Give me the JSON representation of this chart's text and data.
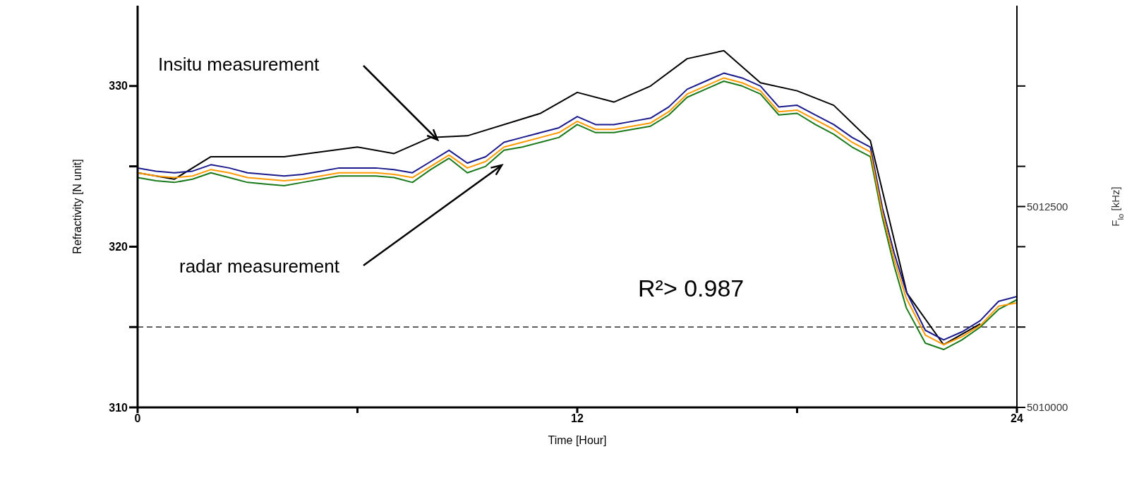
{
  "chart_data": {
    "type": "line",
    "xlabel": "Time [Hour]",
    "ylabel": "Refractivity [N unit]",
    "y2label": "F$_{lo}$ [kHz]",
    "marker": "none",
    "xlim": [
      0,
      24
    ],
    "xticks": [
      0,
      {
        "value": 6,
        "label": null
      },
      12,
      {
        "value": 18,
        "label": null
      },
      24
    ],
    "ylim": [
      310,
      335
    ],
    "yticks": [
      310,
      {
        "value": 315,
        "label": null
      },
      320,
      {
        "value": 325,
        "label": null
      },
      330
    ],
    "y2lim": [
      5010000,
      5015000
    ],
    "y2ticks": [
      5010000,
      {
        "value": 5011000,
        "label": null
      },
      {
        "value": 5012000,
        "label": null
      },
      5012500,
      {
        "value": 5013000,
        "label": null
      },
      {
        "value": 5014000,
        "label": null
      }
    ],
    "x": [
      0,
      0.5,
      1,
      1.5,
      2,
      2.5,
      3,
      3.5,
      4,
      4.5,
      5,
      5.5,
      6,
      6.5,
      7,
      7.5,
      8,
      8.5,
      9,
      9.5,
      10,
      10.5,
      11,
      11.5,
      12,
      12.5,
      13,
      13.5,
      14,
      14.5,
      15,
      15.5,
      16,
      16.5,
      17,
      17.5,
      18,
      18.5,
      19,
      19.5,
      20,
      20.33,
      20.65,
      20.98,
      21.5,
      22,
      22.5,
      23,
      23.5,
      24
    ],
    "series": [
      {
        "color": "#000000",
        "x": [
          0,
          1,
          2,
          4,
          6,
          7,
          8,
          9,
          11,
          12,
          13,
          14,
          15,
          16,
          17,
          18,
          19,
          20,
          21,
          22,
          23
        ],
        "values": [
          324.6,
          324.2,
          325.6,
          325.6,
          326.2,
          325.8,
          326.8,
          326.9,
          328.3,
          329.6,
          329.0,
          330.0,
          331.7,
          332.2,
          330.2,
          329.7,
          328.8,
          326.6,
          317.1,
          313.9,
          315.2
        ]
      },
      {
        "color": "#1a7a1a",
        "values": [
          324.3,
          324.1,
          324.0,
          324.2,
          324.6,
          324.3,
          324.0,
          323.9,
          323.8,
          324.0,
          324.2,
          324.4,
          324.4,
          324.4,
          324.3,
          324.0,
          324.8,
          325.5,
          324.6,
          325.0,
          326.0,
          326.2,
          326.5,
          326.8,
          327.6,
          327.1,
          327.1,
          327.3,
          327.5,
          328.2,
          329.3,
          329.8,
          330.3,
          330.0,
          329.5,
          328.2,
          328.3,
          327.6,
          327.0,
          326.2,
          325.6,
          321.8,
          318.8,
          316.2,
          314.0,
          313.6,
          314.2,
          315.0,
          316.1,
          316.7
        ]
      },
      {
        "color": "#1a1a8c",
        "values": [
          324.9,
          324.7,
          324.6,
          324.7,
          325.1,
          324.9,
          324.6,
          324.5,
          324.4,
          324.5,
          324.7,
          324.9,
          324.9,
          324.9,
          324.8,
          324.6,
          325.3,
          326.0,
          325.2,
          325.6,
          326.5,
          326.8,
          327.1,
          327.4,
          328.1,
          327.6,
          327.6,
          327.8,
          328.0,
          328.7,
          329.8,
          330.3,
          330.8,
          330.5,
          330.0,
          328.7,
          328.8,
          328.2,
          327.6,
          326.8,
          326.2,
          322.4,
          319.6,
          317.2,
          314.8,
          314.2,
          314.7,
          315.4,
          316.6,
          316.9
        ]
      },
      {
        "color": "#ff9900",
        "values": [
          324.6,
          324.4,
          324.3,
          324.4,
          324.8,
          324.6,
          324.3,
          324.2,
          324.1,
          324.2,
          324.4,
          324.6,
          324.6,
          324.6,
          324.5,
          324.3,
          325.0,
          325.7,
          324.9,
          325.3,
          326.2,
          326.5,
          326.8,
          327.1,
          327.8,
          327.3,
          327.3,
          327.5,
          327.7,
          328.4,
          329.5,
          330.0,
          330.5,
          330.2,
          329.7,
          328.4,
          328.5,
          327.9,
          327.3,
          326.5,
          325.9,
          322.1,
          319.2,
          316.8,
          314.5,
          313.9,
          314.4,
          315.1,
          316.3,
          316.5
        ]
      }
    ],
    "ref_lines": [
      {
        "axis": "y",
        "value": 315,
        "color": "#000000",
        "line_style": "dashed"
      }
    ],
    "annotations": [
      "Insitu measurement",
      "radar measurement",
      "R²> 0.987"
    ]
  }
}
